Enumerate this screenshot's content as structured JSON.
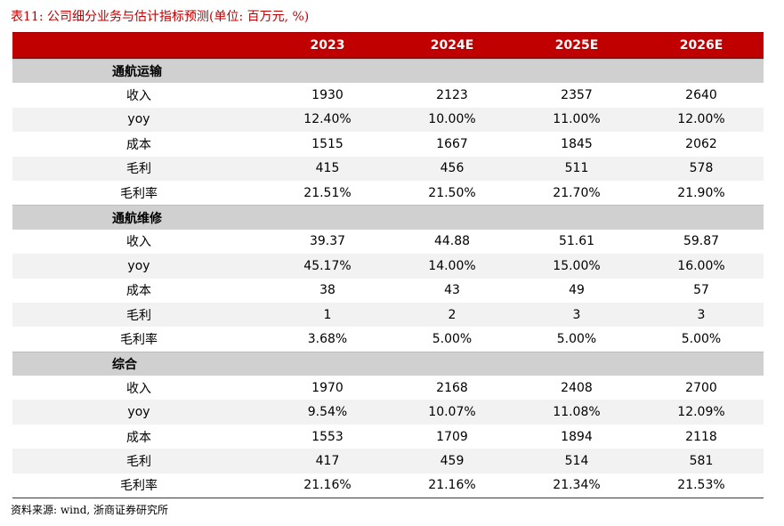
{
  "title": "表11:  公司细分业务与估计指标预测(单位: 百万元, %)",
  "header": [
    "",
    "2023",
    "2024E",
    "2025E",
    "2026E"
  ],
  "sections": [
    {
      "name": "通航运输",
      "rows": [
        {
          "label": "收入",
          "values": [
            "1930",
            "2123",
            "2357",
            "2640"
          ]
        },
        {
          "label": "yoy",
          "values": [
            "12.40%",
            "10.00%",
            "11.00%",
            "12.00%"
          ]
        },
        {
          "label": "成本",
          "values": [
            "1515",
            "1667",
            "1845",
            "2062"
          ]
        },
        {
          "label": "毛利",
          "values": [
            "415",
            "456",
            "511",
            "578"
          ]
        },
        {
          "label": "毛利率",
          "values": [
            "21.51%",
            "21.50%",
            "21.70%",
            "21.90%"
          ]
        }
      ]
    },
    {
      "name": "通航维修",
      "rows": [
        {
          "label": "收入",
          "values": [
            "39.37",
            "44.88",
            "51.61",
            "59.87"
          ]
        },
        {
          "label": "yoy",
          "values": [
            "45.17%",
            "14.00%",
            "15.00%",
            "16.00%"
          ]
        },
        {
          "label": "成本",
          "values": [
            "38",
            "43",
            "49",
            "57"
          ]
        },
        {
          "label": "毛利",
          "values": [
            "1",
            "2",
            "3",
            "3"
          ]
        },
        {
          "label": "毛利率",
          "values": [
            "3.68%",
            "5.00%",
            "5.00%",
            "5.00%"
          ]
        }
      ]
    },
    {
      "name": "综合",
      "rows": [
        {
          "label": "收入",
          "values": [
            "1970",
            "2168",
            "2408",
            "2700"
          ]
        },
        {
          "label": "yoy",
          "values": [
            "9.54%",
            "10.07%",
            "11.08%",
            "12.09%"
          ]
        },
        {
          "label": "成本",
          "values": [
            "1553",
            "1709",
            "1894",
            "2118"
          ]
        },
        {
          "label": "毛利",
          "values": [
            "417",
            "459",
            "514",
            "581"
          ]
        },
        {
          "label": "毛利率",
          "values": [
            "21.16%",
            "21.16%",
            "21.34%",
            "21.53%"
          ]
        }
      ]
    }
  ],
  "source": "资料来源: wind, 浙商证券研究所",
  "colors": {
    "header_bg": "#c00000",
    "section_bg": "#d0d0d0",
    "stripe_bg": "#f2f2f2"
  }
}
